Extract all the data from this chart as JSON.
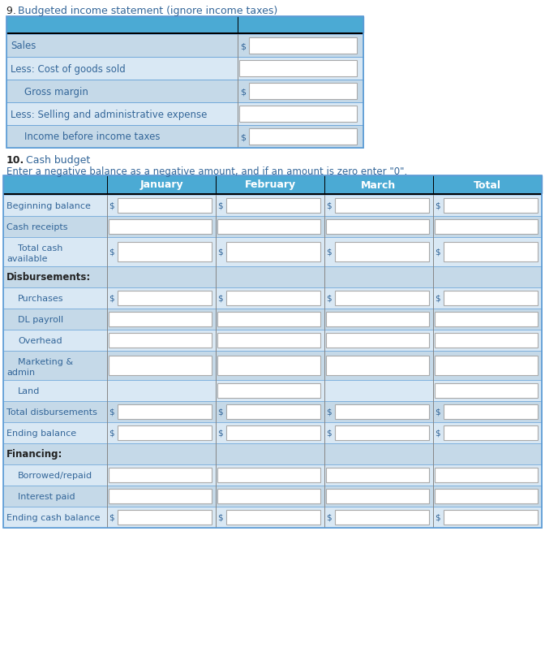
{
  "title_9_num": "9. ",
  "title_9_rest": "Budgeted income statement (ignore income taxes)",
  "title_10_bold": "10.",
  "title_10_rest": " Cash budget",
  "subtitle_10": "Enter a negative balance as a negative amount, and if an amount is zero enter \"0\".",
  "section9_header_color": "#4BAAD4",
  "section9_row_colors": [
    "#C5D9E8",
    "#D9E8F4",
    "#C5D9E8",
    "#D9E8F4",
    "#C5D9E8"
  ],
  "section9_rows": [
    {
      "label": "Sales",
      "indent": false,
      "has_dollar": true
    },
    {
      "label": "Less: Cost of goods sold",
      "indent": false,
      "has_dollar": false
    },
    {
      "label": "Gross margin",
      "indent": true,
      "has_dollar": true
    },
    {
      "label": "Less: Selling and administrative expense",
      "indent": false,
      "has_dollar": false
    },
    {
      "label": "Income before income taxes",
      "indent": true,
      "has_dollar": true
    }
  ],
  "section10_header_color": "#4BAAD4",
  "section10_col_headers": [
    "",
    "January",
    "February",
    "March",
    "Total"
  ],
  "section10_row_bg_light": "#D9E8F4",
  "section10_row_bg_mid": "#C5D9E8",
  "section10_rows": [
    {
      "label": "Beginning balance",
      "indent": false,
      "bold": false,
      "has_dollar": [
        true,
        true,
        true,
        true
      ],
      "has_box": [
        true,
        true,
        true,
        true
      ],
      "bg": "light",
      "two_line": false
    },
    {
      "label": "Cash receipts",
      "indent": false,
      "bold": false,
      "has_dollar": [
        false,
        false,
        false,
        false
      ],
      "has_box": [
        true,
        true,
        true,
        true
      ],
      "bg": "mid",
      "two_line": false
    },
    {
      "label": "Total cash\navailable",
      "indent": true,
      "bold": false,
      "has_dollar": [
        true,
        true,
        true,
        true
      ],
      "has_box": [
        true,
        true,
        true,
        true
      ],
      "bg": "light",
      "two_line": true
    },
    {
      "label": "Disbursements:",
      "indent": false,
      "bold": true,
      "has_dollar": [
        false,
        false,
        false,
        false
      ],
      "has_box": [
        false,
        false,
        false,
        false
      ],
      "bg": "mid",
      "two_line": false
    },
    {
      "label": "Purchases",
      "indent": true,
      "bold": false,
      "has_dollar": [
        true,
        true,
        true,
        true
      ],
      "has_box": [
        true,
        true,
        true,
        true
      ],
      "bg": "light",
      "two_line": false
    },
    {
      "label": "DL payroll",
      "indent": true,
      "bold": false,
      "has_dollar": [
        false,
        false,
        false,
        false
      ],
      "has_box": [
        true,
        true,
        true,
        true
      ],
      "bg": "mid",
      "two_line": false
    },
    {
      "label": "Overhead",
      "indent": true,
      "bold": false,
      "has_dollar": [
        false,
        false,
        false,
        false
      ],
      "has_box": [
        true,
        true,
        true,
        true
      ],
      "bg": "light",
      "two_line": false
    },
    {
      "label": "Marketing &\nadmin",
      "indent": true,
      "bold": false,
      "has_dollar": [
        false,
        false,
        false,
        false
      ],
      "has_box": [
        true,
        true,
        true,
        true
      ],
      "bg": "mid",
      "two_line": true
    },
    {
      "label": "Land",
      "indent": true,
      "bold": false,
      "has_dollar": [
        false,
        false,
        false,
        false
      ],
      "has_box": [
        false,
        true,
        false,
        true
      ],
      "bg": "light",
      "two_line": false
    },
    {
      "label": "Total disbursements",
      "indent": false,
      "bold": false,
      "has_dollar": [
        true,
        true,
        true,
        true
      ],
      "has_box": [
        true,
        true,
        true,
        true
      ],
      "bg": "mid",
      "two_line": false
    },
    {
      "label": "Ending balance",
      "indent": false,
      "bold": false,
      "has_dollar": [
        true,
        true,
        true,
        true
      ],
      "has_box": [
        true,
        true,
        true,
        true
      ],
      "bg": "light",
      "two_line": false
    },
    {
      "label": "Financing:",
      "indent": false,
      "bold": true,
      "has_dollar": [
        false,
        false,
        false,
        false
      ],
      "has_box": [
        false,
        false,
        false,
        false
      ],
      "bg": "mid",
      "two_line": false
    },
    {
      "label": "Borrowed/repaid",
      "indent": true,
      "bold": false,
      "has_dollar": [
        false,
        false,
        false,
        false
      ],
      "has_box": [
        true,
        true,
        true,
        true
      ],
      "bg": "light",
      "two_line": false
    },
    {
      "label": "Interest paid",
      "indent": true,
      "bold": false,
      "has_dollar": [
        false,
        false,
        false,
        false
      ],
      "has_box": [
        true,
        true,
        true,
        true
      ],
      "bg": "mid",
      "two_line": false
    },
    {
      "label": "Ending cash balance",
      "indent": false,
      "bold": false,
      "has_dollar": [
        true,
        true,
        true,
        true
      ],
      "has_box": [
        true,
        true,
        true,
        true
      ],
      "bg": "light",
      "two_line": false
    }
  ],
  "text_color_label": "#336699",
  "text_color_header": "#FFFFFF",
  "text_color_bold": "#222222",
  "dollar_color": "#336699",
  "title_color_9_num": "#222222",
  "title_color_9_rest": "#336699",
  "title_bold_color": "#222222",
  "fig_bg": "#FFFFFF",
  "border_color": "#5B9BD5",
  "black_sep": "#000000",
  "col_div_color": "#888888"
}
